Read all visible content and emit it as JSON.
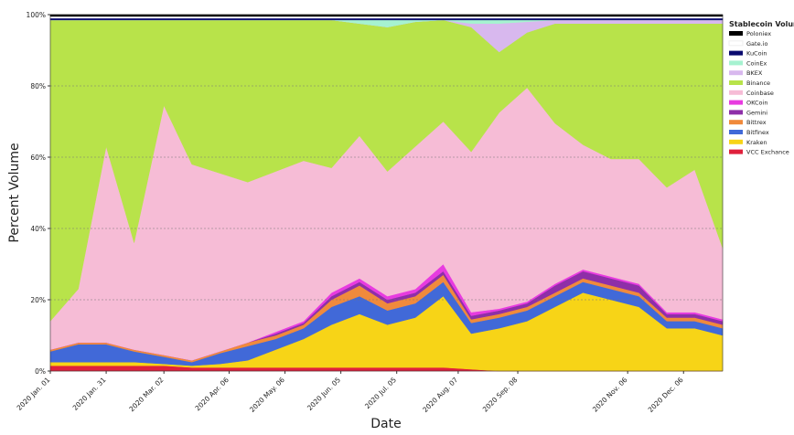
{
  "chart_data": {
    "type": "area",
    "stacked": true,
    "x_label": "Date",
    "y_label": "Percent Volume",
    "legend_title": "Stablecoin Volume",
    "legend": "right",
    "grid": true,
    "x": [
      "2020-01-01",
      "2020-01-16",
      "2020-01-31",
      "2020-02-15",
      "2020-03-02",
      "2020-03-17",
      "2020-04-01",
      "2020-04-16",
      "2020-05-01",
      "2020-05-16",
      "2020-05-31",
      "2020-06-15",
      "2020-06-30",
      "2020-07-15",
      "2020-07-30",
      "2020-08-14",
      "2020-08-29",
      "2020-09-13",
      "2020-09-28",
      "2020-10-13",
      "2020-10-28",
      "2020-11-12",
      "2020-11-27",
      "2020-12-12",
      "2020-12-27"
    ],
    "xlim": [
      "2020-01-01",
      "2020-12-27"
    ],
    "xticks": [
      {
        "value": "2020-01-01",
        "label": "2020 Jan. 01"
      },
      {
        "value": "2020-01-31",
        "label": "2020 Jan. 31"
      },
      {
        "value": "2020-03-02",
        "label": "2020 Mar. 02"
      },
      {
        "value": "2020-04-06",
        "label": "2020 Apr. 06"
      },
      {
        "value": "2020-05-06",
        "label": "2020 May. 06"
      },
      {
        "value": "2020-06-05",
        "label": "2020 Jun. 05"
      },
      {
        "value": "2020-07-05",
        "label": "2020 Jul. 05"
      },
      {
        "value": "2020-08-07",
        "label": "2020 Aug. 07"
      },
      {
        "value": "2020-09-08",
        "label": "2020 Sep. 08"
      },
      {
        "value": "2020-11-06",
        "label": "2020 Nov. 06"
      },
      {
        "value": "2020-12-06",
        "label": "2020 Dec. 06"
      }
    ],
    "ylim": [
      0,
      100
    ],
    "yticks": [
      {
        "value": 0,
        "label": "0%"
      },
      {
        "value": 20,
        "label": "20%"
      },
      {
        "value": 40,
        "label": "40%"
      },
      {
        "value": 60,
        "label": "60%"
      },
      {
        "value": 80,
        "label": "80%"
      },
      {
        "value": 100,
        "label": "100%"
      }
    ],
    "series": [
      {
        "name": "VCC Exchance",
        "color": "#e0203c",
        "values": [
          1.5,
          1.5,
          1.5,
          1.5,
          1.5,
          1,
          1,
          1,
          1,
          1,
          1,
          1,
          1,
          1,
          1,
          0.5,
          0,
          0,
          0,
          0,
          0,
          0,
          0,
          0,
          0
        ]
      },
      {
        "name": "Kraken",
        "color": "#f7d417",
        "values": [
          1,
          1,
          1,
          1,
          0.5,
          0.5,
          1,
          2,
          5,
          8,
          12,
          15,
          12,
          14,
          20,
          10,
          12,
          14,
          18,
          22,
          20,
          18,
          12,
          12,
          10
        ]
      },
      {
        "name": "Bitfinex",
        "color": "#4169d8",
        "values": [
          3,
          5,
          5,
          3,
          2,
          1,
          3,
          4,
          3,
          3,
          5,
          5,
          4,
          4,
          4,
          3,
          3,
          3,
          3,
          3,
          3,
          3,
          2,
          2,
          2
        ]
      },
      {
        "name": "Bittrex",
        "color": "#f08a3c",
        "values": [
          0.5,
          0.5,
          0.5,
          0.5,
          0.5,
          0.5,
          0.5,
          1,
          1,
          1,
          2,
          3,
          2,
          2,
          2,
          1,
          1,
          1,
          1,
          1,
          1,
          1,
          1,
          1,
          1
        ]
      },
      {
        "name": "Gemini",
        "color": "#8e2fa8",
        "values": [
          0,
          0,
          0,
          0,
          0,
          0,
          0,
          0,
          0.5,
          0.5,
          1,
          1,
          1,
          1,
          1,
          1,
          1,
          1,
          2,
          2,
          2,
          2,
          1,
          1,
          1
        ]
      },
      {
        "name": "OKCoin",
        "color": "#e83be0",
        "values": [
          0,
          0,
          0,
          0,
          0,
          0,
          0,
          0,
          0.5,
          0.5,
          1,
          1,
          1,
          1,
          2,
          1,
          0.5,
          0.5,
          0.5,
          0.5,
          0.5,
          0.5,
          0.5,
          0.5,
          0.5
        ]
      },
      {
        "name": "Coinbase",
        "color": "#f6bcd6",
        "values": [
          8,
          15,
          55,
          30,
          70,
          55,
          50,
          45,
          45,
          45,
          35,
          40,
          35,
          40,
          40,
          45,
          55,
          60,
          45,
          35,
          33,
          35,
          35,
          40,
          20
        ]
      },
      {
        "name": "Binance",
        "color": "#b8e34a",
        "values": [
          84.5,
          75.5,
          35.5,
          62.5,
          24,
          40.5,
          43,
          45.5,
          42.5,
          39.5,
          41.5,
          31.5,
          40.5,
          35,
          28.5,
          35,
          17,
          15.5,
          28,
          34,
          38,
          38,
          46,
          41,
          63
        ]
      },
      {
        "name": "BKEX",
        "color": "#d8b8ee",
        "values": [
          0,
          0,
          0,
          0,
          0,
          0,
          0,
          0,
          0,
          0,
          0,
          0,
          0,
          0,
          0,
          1,
          8,
          3,
          1,
          1,
          1,
          1,
          1,
          1,
          1
        ]
      },
      {
        "name": "CoinEx",
        "color": "#a6f2d0",
        "values": [
          0,
          0,
          0,
          0,
          0,
          0,
          0,
          0,
          0,
          0,
          0,
          1,
          2,
          0.5,
          0,
          1,
          1,
          0.5,
          0,
          0,
          0,
          0,
          0,
          0,
          0
        ]
      },
      {
        "name": "KuCoin",
        "color": "#0a0a6e",
        "values": [
          0.5,
          0.5,
          0.5,
          0.5,
          0.5,
          0.5,
          0.5,
          0.5,
          0.5,
          0.5,
          0.5,
          0.5,
          0.5,
          0.5,
          0.5,
          0.5,
          0.5,
          0.5,
          0.5,
          0.5,
          0.5,
          0.5,
          0.5,
          0.5,
          0.5
        ]
      },
      {
        "name": "Gate.io",
        "color": "#ffffff",
        "values": [
          0.5,
          0.5,
          0.5,
          0.5,
          0.5,
          0.5,
          0.5,
          0.5,
          0.5,
          0.5,
          0.5,
          0.5,
          0.5,
          0.5,
          0.5,
          0.5,
          0.5,
          0.5,
          0.5,
          0.5,
          0.5,
          0.5,
          0.5,
          0.5,
          0.5
        ]
      },
      {
        "name": "Poloniex",
        "color": "#000000",
        "values": [
          0.5,
          0.5,
          0.5,
          0.5,
          0.5,
          0.5,
          0.5,
          0.5,
          0.5,
          0.5,
          0.5,
          0.5,
          0.5,
          0.5,
          0.5,
          0.5,
          0.5,
          0.5,
          0.5,
          0.5,
          0.5,
          0.5,
          0.5,
          0.5,
          0.5
        ]
      }
    ]
  }
}
